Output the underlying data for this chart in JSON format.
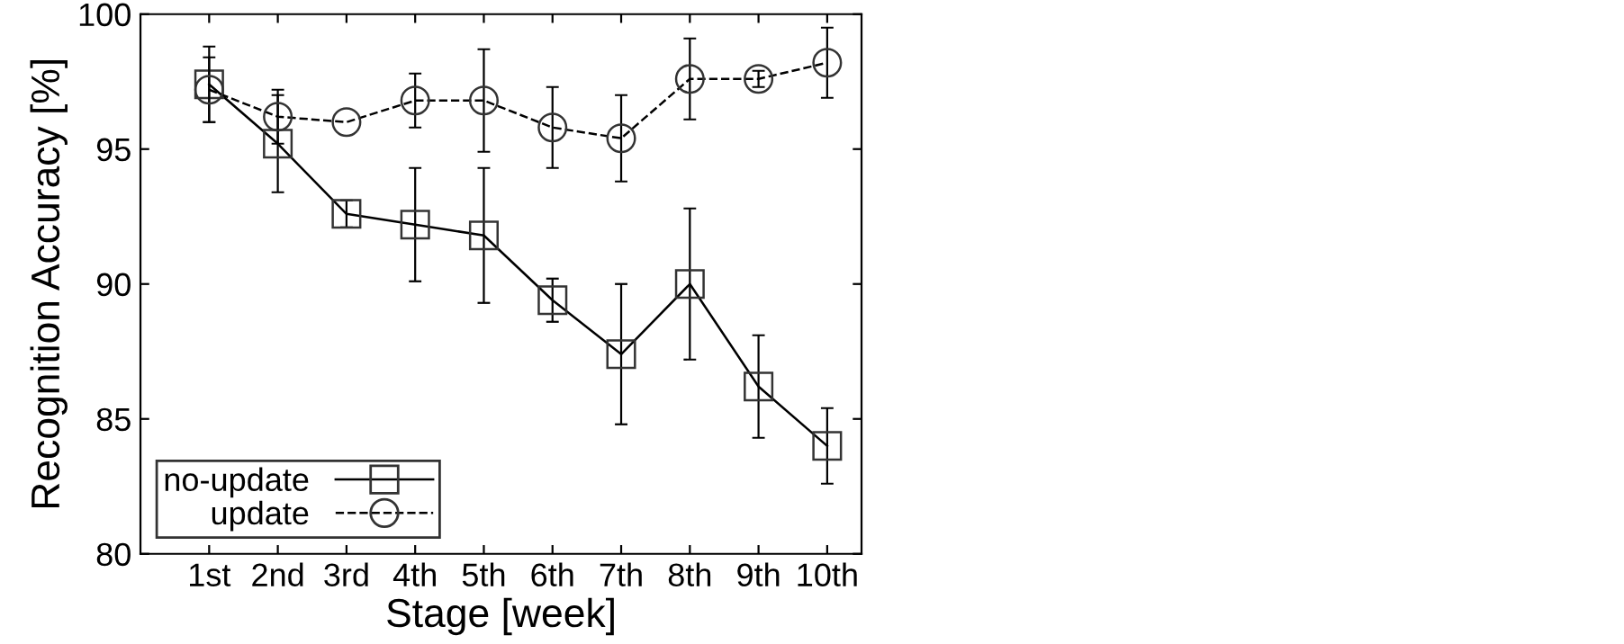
{
  "chart_data": {
    "type": "line",
    "xlabel": "Stage [week]",
    "ylabel": "Recognition Accuracy [%]",
    "categories": [
      "1st",
      "2nd",
      "3rd",
      "4th",
      "5th",
      "6th",
      "7th",
      "8th",
      "9th",
      "10th"
    ],
    "series": [
      {
        "name": "no-update",
        "color": "#000000",
        "marker": "square",
        "line_style": "solid",
        "values": [
          97.4,
          95.2,
          92.6,
          92.2,
          91.8,
          89.4,
          87.4,
          90.0,
          86.2,
          84.0
        ],
        "errors": [
          1.4,
          1.8,
          0.5,
          2.1,
          2.5,
          0.8,
          2.6,
          2.8,
          1.9,
          1.4
        ]
      },
      {
        "name": "update",
        "color": "#000000",
        "marker": "circle",
        "line_style": "dashed",
        "values": [
          97.2,
          96.2,
          96.0,
          96.8,
          96.8,
          95.8,
          95.4,
          97.6,
          97.6,
          98.2
        ],
        "errors": [
          1.2,
          1.0,
          null,
          1.0,
          1.9,
          1.5,
          1.6,
          1.5,
          0.3,
          1.3
        ]
      }
    ],
    "ylim": [
      80,
      100
    ],
    "yticks": [
      80,
      85,
      90,
      95,
      100
    ],
    "grid": false,
    "legend": "bottom left"
  }
}
